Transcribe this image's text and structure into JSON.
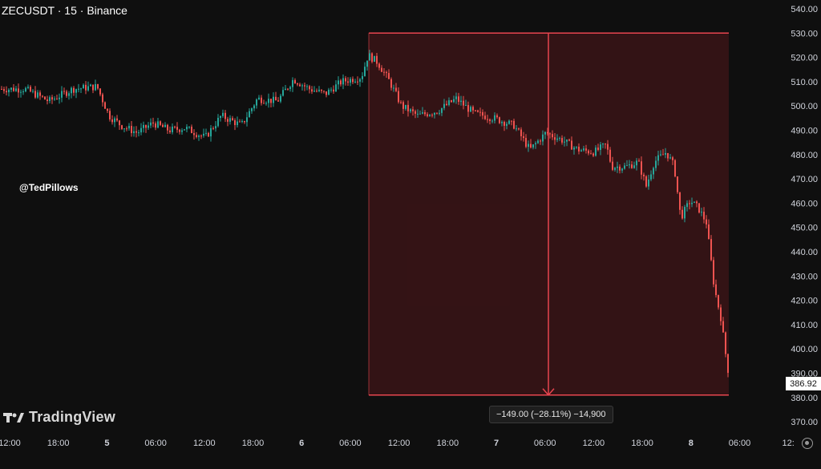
{
  "header": {
    "symbol_line": "ZECUSDT · 15 · Binance"
  },
  "watermark": {
    "handle": "@TedPillows",
    "brand": "TradingView"
  },
  "measure": {
    "label": "−149.00 (−28.11%) −14,900"
  },
  "last_price": "386.92",
  "colors": {
    "up": "#26a69a",
    "down": "#ef5350",
    "zone_fill": "#3a1416",
    "zone_line": "#e8454f",
    "background": "#0f0f0f"
  },
  "chart_data": {
    "type": "candlestick",
    "title": "ZECUSDT · 15 · Binance",
    "ylim": [
      365,
      545
    ],
    "y_ticks": [
      "540.00",
      "530.00",
      "520.00",
      "510.00",
      "500.00",
      "490.00",
      "480.00",
      "470.00",
      "460.00",
      "450.00",
      "440.00",
      "430.00",
      "420.00",
      "410.00",
      "400.00",
      "390.00",
      "380.00",
      "370.00"
    ],
    "x_ticks": [
      "12:00",
      "18:00",
      "5",
      "06:00",
      "12:00",
      "18:00",
      "6",
      "06:00",
      "12:00",
      "18:00",
      "7",
      "06:00",
      "12:00",
      "18:00",
      "8",
      "06:00",
      "12:"
    ],
    "bold_x_ticks": [
      "5",
      "6",
      "7",
      "8"
    ],
    "price_path": [
      [
        0,
        507
      ],
      [
        30,
        507
      ],
      [
        60,
        502
      ],
      [
        90,
        507
      ],
      [
        120,
        508
      ],
      [
        135,
        496
      ],
      [
        150,
        492
      ],
      [
        170,
        489
      ],
      [
        190,
        493
      ],
      [
        210,
        490
      ],
      [
        230,
        491
      ],
      [
        255,
        487
      ],
      [
        275,
        496
      ],
      [
        300,
        492
      ],
      [
        320,
        503
      ],
      [
        345,
        502
      ],
      [
        365,
        511
      ],
      [
        385,
        507
      ],
      [
        405,
        505
      ],
      [
        425,
        510
      ],
      [
        450,
        512
      ],
      [
        458,
        521
      ],
      [
        470,
        518
      ],
      [
        485,
        510
      ],
      [
        500,
        500
      ],
      [
        520,
        496
      ],
      [
        545,
        498
      ],
      [
        568,
        503
      ],
      [
        590,
        497
      ],
      [
        615,
        495
      ],
      [
        640,
        492
      ],
      [
        660,
        482
      ],
      [
        680,
        489
      ],
      [
        700,
        486
      ],
      [
        720,
        482
      ],
      [
        740,
        481
      ],
      [
        755,
        484
      ],
      [
        762,
        475
      ],
      [
        780,
        475
      ],
      [
        795,
        477
      ],
      [
        805,
        467
      ],
      [
        815,
        477
      ],
      [
        830,
        481
      ],
      [
        840,
        475
      ],
      [
        848,
        454
      ],
      [
        860,
        461
      ],
      [
        870,
        458
      ],
      [
        880,
        452
      ],
      [
        890,
        425
      ],
      [
        898,
        413
      ],
      [
        904,
        398
      ],
      [
        909,
        387
      ]
    ],
    "measure_range": {
      "start_time_index": 458,
      "start_price": 530,
      "end_price": 381,
      "change": -149.0,
      "change_pct": -28.11,
      "ticks": -14900
    },
    "annotation": {
      "type": "price-range-down",
      "label": "−149.00 (−28.11%) −14,900"
    }
  }
}
